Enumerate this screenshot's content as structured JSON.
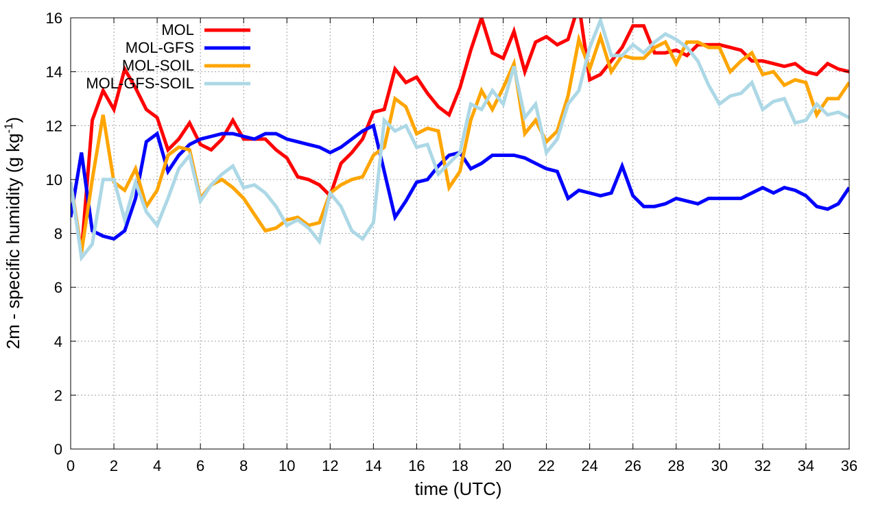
{
  "chart_data": {
    "type": "line",
    "xlabel": "time (UTC)",
    "ylabel_main": "2m - specific humidity (g kg",
    "ylabel_sup": "-1",
    "ylabel_close": ")",
    "xlim": [
      0,
      36
    ],
    "ylim": [
      0,
      16
    ],
    "xticks": [
      0,
      2,
      4,
      6,
      8,
      10,
      12,
      14,
      16,
      18,
      20,
      22,
      24,
      26,
      28,
      30,
      32,
      34,
      36
    ],
    "yticks": [
      0,
      2,
      4,
      6,
      8,
      10,
      12,
      14,
      16
    ],
    "grid": true,
    "legend_position": "top-left",
    "series": [
      {
        "name": "MOL",
        "color": "#ff0000",
        "x": [
          0,
          0.5,
          1,
          1.5,
          2,
          2.5,
          3,
          3.5,
          4,
          4.5,
          5,
          5.5,
          6,
          6.5,
          7,
          7.5,
          8,
          8.5,
          9,
          9.5,
          10,
          10.5,
          11,
          11.5,
          12,
          12.5,
          13,
          13.5,
          14,
          14.5,
          15,
          15.5,
          16,
          16.5,
          17,
          17.5,
          18,
          18.5,
          19,
          19.5,
          20,
          20.5,
          21,
          21.5,
          22,
          22.5,
          23,
          23.5,
          24,
          24.5,
          25,
          25.5,
          26,
          26.5,
          27,
          27.5,
          28,
          28.5,
          29,
          29.5,
          30,
          30.5,
          31,
          31.5,
          32,
          32.5,
          33,
          33.5,
          34,
          34.5,
          35,
          35.5,
          36
        ],
        "y": [
          9.9,
          7.3,
          12.2,
          13.3,
          12.6,
          14.1,
          13.4,
          12.6,
          12.3,
          11.1,
          11.5,
          12.1,
          11.3,
          11.1,
          11.5,
          12.2,
          11.5,
          11.5,
          11.5,
          11.1,
          10.8,
          10.1,
          10.0,
          9.8,
          9.4,
          10.6,
          11.0,
          11.5,
          12.5,
          12.6,
          14.1,
          13.6,
          13.8,
          13.2,
          12.7,
          12.4,
          13.4,
          14.8,
          16.0,
          14.7,
          14.5,
          15.5,
          14.0,
          15.1,
          15.3,
          15.0,
          15.2,
          16.5,
          13.7,
          13.9,
          14.4,
          14.9,
          15.7,
          15.7,
          14.7,
          14.7,
          14.8,
          14.6,
          15.0,
          15.0,
          15.0,
          14.9,
          14.8,
          14.4,
          14.4,
          14.3,
          14.2,
          14.3,
          14.0,
          13.9,
          14.3,
          14.1,
          14.0
        ]
      },
      {
        "name": "MOL-GFS",
        "color": "#0000ff",
        "x": [
          0,
          0.5,
          1,
          1.5,
          2,
          2.5,
          3,
          3.5,
          4,
          4.5,
          5,
          5.5,
          6,
          6.5,
          7,
          7.5,
          8,
          8.5,
          9,
          9.5,
          10,
          10.5,
          11,
          11.5,
          12,
          12.5,
          13,
          13.5,
          14,
          14.5,
          15,
          15.5,
          16,
          16.5,
          17,
          17.5,
          18,
          18.5,
          19,
          19.5,
          20,
          20.5,
          21,
          21.5,
          22,
          22.5,
          23,
          23.5,
          24,
          24.5,
          25,
          25.5,
          26,
          26.5,
          27,
          27.5,
          28,
          28.5,
          29,
          29.5,
          30,
          30.5,
          31,
          31.5,
          32,
          32.5,
          33,
          33.5,
          34,
          34.5,
          35,
          35.5,
          36
        ],
        "y": [
          8.6,
          11.0,
          8.1,
          7.9,
          7.8,
          8.1,
          9.3,
          11.4,
          11.7,
          10.3,
          10.9,
          11.3,
          11.5,
          11.6,
          11.7,
          11.7,
          11.6,
          11.5,
          11.7,
          11.7,
          11.5,
          11.4,
          11.3,
          11.2,
          11.0,
          11.2,
          11.5,
          11.8,
          12.0,
          10.3,
          8.6,
          9.2,
          9.9,
          10.0,
          10.5,
          10.9,
          11.0,
          10.4,
          10.6,
          10.9,
          10.9,
          10.9,
          10.8,
          10.6,
          10.4,
          10.3,
          9.3,
          9.6,
          9.5,
          9.4,
          9.5,
          10.5,
          9.4,
          9.0,
          9.0,
          9.1,
          9.3,
          9.2,
          9.1,
          9.3,
          9.3,
          9.3,
          9.3,
          9.5,
          9.7,
          9.5,
          9.7,
          9.6,
          9.4,
          9.0,
          8.9,
          9.1,
          9.7
        ]
      },
      {
        "name": "MOL-SOIL",
        "color": "#ffa500",
        "x": [
          0,
          0.5,
          1,
          1.5,
          2,
          2.5,
          3,
          3.5,
          4,
          4.5,
          5,
          5.5,
          6,
          6.5,
          7,
          7.5,
          8,
          8.5,
          9,
          9.5,
          10,
          10.5,
          11,
          11.5,
          12,
          12.5,
          13,
          13.5,
          14,
          14.5,
          15,
          15.5,
          16,
          16.5,
          17,
          17.5,
          18,
          18.5,
          19,
          19.5,
          20,
          20.5,
          21,
          21.5,
          22,
          22.5,
          23,
          23.5,
          24,
          24.5,
          25,
          25.5,
          26,
          26.5,
          27,
          27.5,
          28,
          28.5,
          29,
          29.5,
          30,
          30.5,
          31,
          31.5,
          32,
          32.5,
          33,
          33.5,
          34,
          34.5,
          35,
          35.5,
          36
        ],
        "y": [
          9.9,
          7.3,
          10.0,
          12.4,
          9.9,
          9.6,
          10.4,
          9.0,
          9.6,
          10.9,
          11.2,
          11.1,
          9.3,
          9.8,
          10.0,
          9.7,
          9.3,
          8.7,
          8.1,
          8.2,
          8.5,
          8.6,
          8.3,
          8.4,
          9.5,
          9.8,
          10.0,
          10.1,
          10.9,
          11.2,
          13.0,
          12.7,
          11.7,
          11.9,
          11.8,
          9.7,
          10.3,
          12.2,
          13.3,
          12.6,
          13.4,
          14.3,
          11.7,
          12.2,
          11.4,
          11.8,
          13.1,
          15.2,
          14.1,
          15.3,
          14.0,
          14.6,
          14.5,
          14.5,
          14.9,
          15.1,
          14.3,
          15.1,
          15.1,
          14.9,
          14.9,
          14.0,
          14.4,
          14.7,
          13.9,
          14.0,
          13.5,
          13.7,
          13.6,
          12.4,
          13.0,
          13.0,
          13.6
        ]
      },
      {
        "name": "MOL-GFS-SOIL",
        "color": "#add8e6",
        "x": [
          0,
          0.5,
          1,
          1.5,
          2,
          2.5,
          3,
          3.5,
          4,
          4.5,
          5,
          5.5,
          6,
          6.5,
          7,
          7.5,
          8,
          8.5,
          9,
          9.5,
          10,
          10.5,
          11,
          11.5,
          12,
          12.5,
          13,
          13.5,
          14,
          14.5,
          15,
          15.5,
          16,
          16.5,
          17,
          17.5,
          18,
          18.5,
          19,
          19.5,
          20,
          20.5,
          21,
          21.5,
          22,
          22.5,
          23,
          23.5,
          24,
          24.5,
          25,
          25.5,
          26,
          26.5,
          27,
          27.5,
          28,
          28.5,
          29,
          29.5,
          30,
          30.5,
          31,
          31.5,
          32,
          32.5,
          33,
          33.5,
          34,
          34.5,
          35,
          35.5,
          36
        ],
        "y": [
          9.9,
          7.1,
          7.6,
          10.0,
          10.0,
          8.5,
          9.9,
          8.8,
          8.3,
          9.3,
          10.4,
          10.9,
          9.2,
          9.8,
          10.2,
          10.5,
          9.7,
          9.8,
          9.5,
          9.0,
          8.3,
          8.5,
          8.2,
          7.7,
          9.5,
          9.0,
          8.1,
          7.8,
          8.4,
          12.2,
          11.8,
          12.0,
          11.2,
          11.3,
          10.2,
          10.6,
          11.0,
          12.8,
          12.6,
          13.3,
          12.8,
          14.2,
          12.3,
          12.8,
          11.0,
          11.5,
          12.8,
          13.3,
          14.9,
          15.9,
          14.6,
          14.6,
          15.0,
          14.7,
          15.1,
          15.4,
          15.2,
          14.9,
          14.4,
          13.5,
          12.8,
          13.1,
          13.2,
          13.6,
          12.6,
          12.9,
          13.0,
          12.1,
          12.2,
          12.8,
          12.4,
          12.5,
          12.3
        ]
      }
    ]
  }
}
